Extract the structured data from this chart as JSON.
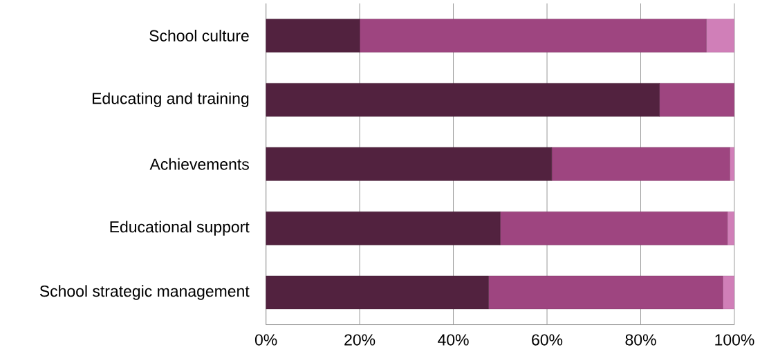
{
  "chart_data": {
    "type": "bar",
    "orientation": "horizontal",
    "stacked": true,
    "categories": [
      "School culture",
      "Educating and training",
      "Achievements",
      "Educational support",
      "School strategic management"
    ],
    "series": [
      {
        "color": "#52223f",
        "values": [
          20,
          84,
          61,
          50,
          47.5
        ]
      },
      {
        "color": "#9e4580",
        "values": [
          74,
          16,
          38,
          48.5,
          50
        ]
      },
      {
        "color": "#d07fb8",
        "values": [
          6,
          0,
          1,
          1.5,
          2.5
        ]
      }
    ],
    "xlim": [
      0,
      100
    ],
    "xticks": [
      {
        "value": 0,
        "label": "0%"
      },
      {
        "value": 20,
        "label": "20%"
      },
      {
        "value": 40,
        "label": "40%"
      },
      {
        "value": 60,
        "label": "60%"
      },
      {
        "value": 80,
        "label": "80%"
      },
      {
        "value": 100,
        "label": "100%"
      }
    ],
    "grid": "x"
  }
}
